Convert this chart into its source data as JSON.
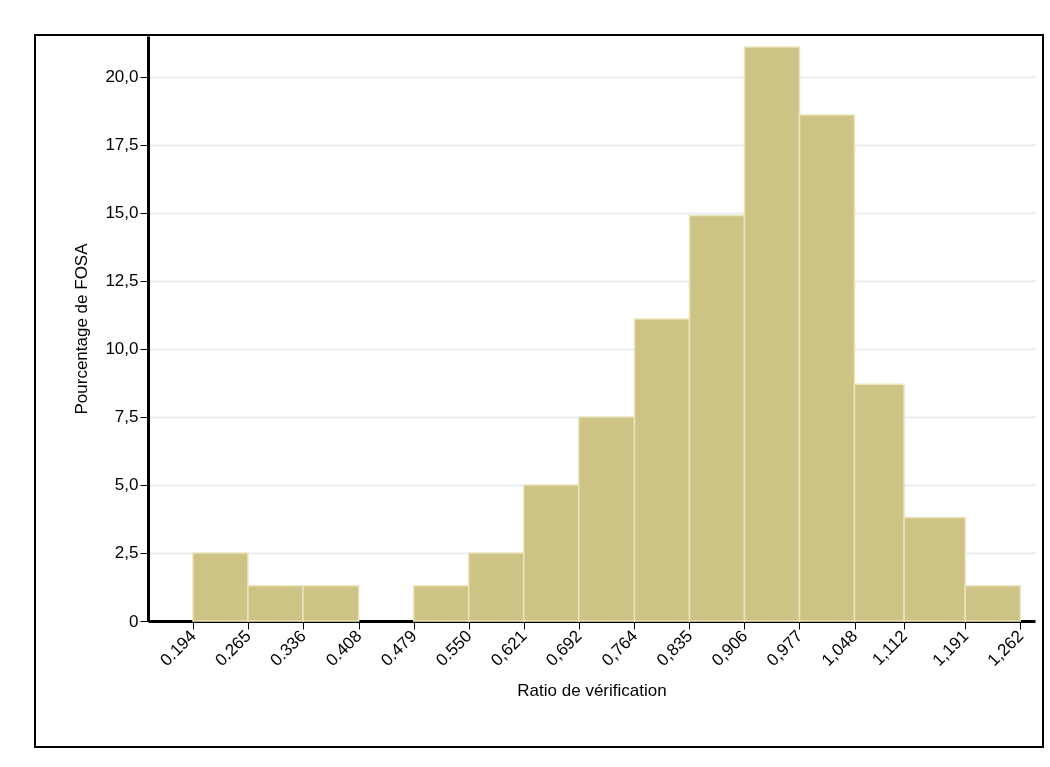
{
  "chart_data": {
    "type": "histogram",
    "xlabel": "Ratio de vérification",
    "ylabel": "Pourcentage de FOSA",
    "bins": [
      0.194,
      0.265,
      0.336,
      0.408,
      0.479,
      0.55,
      0.621,
      0.692,
      0.764,
      0.835,
      0.906,
      0.977,
      1.048,
      1.112,
      1.191,
      1.262
    ],
    "values": [
      2.5,
      1.3,
      1.3,
      0,
      1.3,
      2.5,
      5.0,
      7.5,
      11.1,
      14.9,
      21.1,
      18.6,
      8.7,
      3.8,
      1.3
    ],
    "color": "#cdc385",
    "xlim": [
      0.136,
      1.281
    ],
    "xticks": [
      0.194,
      0.265,
      0.336,
      0.408,
      0.479,
      {
        "value": 0.55,
        "label": "0.550"
      },
      {
        "value": 0.621,
        "label": "0,621"
      },
      {
        "value": 0.692,
        "label": "0,692"
      },
      {
        "value": 0.764,
        "label": "0,764"
      },
      {
        "value": 0.835,
        "label": "0,835"
      },
      {
        "value": 0.906,
        "label": "0,906"
      },
      {
        "value": 0.977,
        "label": "0,977"
      },
      {
        "value": 1.048,
        "label": "1,048"
      },
      {
        "value": 1.112,
        "label": "1,112"
      },
      {
        "value": 1.191,
        "label": "1,191"
      },
      {
        "value": 1.262,
        "label": "1,262"
      }
    ],
    "ylim": [
      0,
      21.5
    ],
    "yticks": [
      0,
      {
        "value": 2.5,
        "label": "2,5"
      },
      {
        "value": 5,
        "label": "5,0"
      },
      {
        "value": 7.5,
        "label": "7,5"
      },
      {
        "value": 10,
        "label": "10,0"
      },
      {
        "value": 12.5,
        "label": "12,5"
      },
      {
        "value": 15,
        "label": "15,0"
      },
      {
        "value": 17.5,
        "label": "17,5"
      },
      {
        "value": 20,
        "label": "20,0"
      }
    ],
    "grid": "y"
  }
}
